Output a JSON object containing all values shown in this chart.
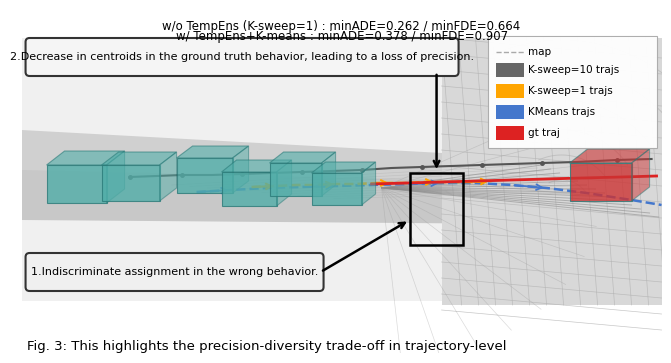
{
  "title_line1": "w/o TempEns (K-sweep=1) : minADE=0.262 / minFDE=0.664",
  "title_line2": "w/ TempEns+K-means : minADE=0.378 / minFDE=0.907",
  "caption": "Fig. 3: This highlights the precision-diversity trade-off in trajectory-level",
  "annotation1": "2.Decrease in centroids in the ground truth behavior, leading to a loss of precision.",
  "annotation2": "1.Indiscriminate assignment in the wrong behavior.",
  "legend_title": "map",
  "legend_items": [
    {
      "label": "K-sweep=10 trajs",
      "color": "#666666"
    },
    {
      "label": "K-sweep=1 trajs",
      "color": "#FFA500"
    },
    {
      "label": "KMeans trajs",
      "color": "#4477CC"
    },
    {
      "label": "gt traj",
      "color": "#DD2222"
    }
  ],
  "bg_color": "#ffffff",
  "teal_color": "#50ADA8",
  "title_fontsize": 8.5,
  "caption_fontsize": 9.5,
  "annotation1_fontsize": 8.0,
  "annotation2_fontsize": 8.0,
  "legend_fontsize": 7.5
}
